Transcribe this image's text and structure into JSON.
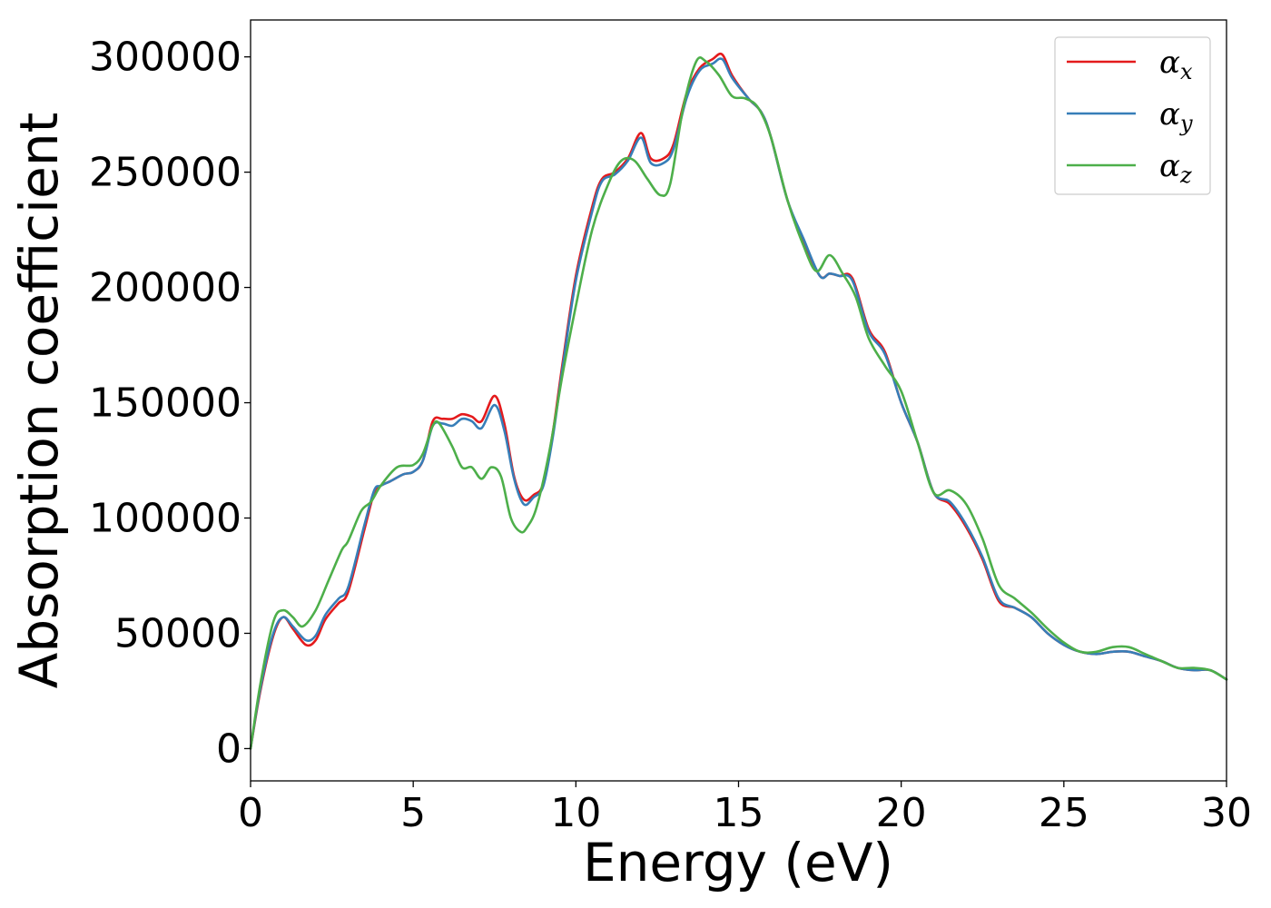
{
  "chart_data": {
    "type": "line",
    "title": "",
    "xlabel": "Energy (eV)",
    "ylabel": "Absorption coefficient",
    "xlim": [
      0,
      30
    ],
    "ylim": [
      -14000,
      316000
    ],
    "xticks": [
      0,
      5,
      10,
      15,
      20,
      25,
      30
    ],
    "yticks": [
      0,
      50000,
      100000,
      150000,
      200000,
      250000,
      300000
    ],
    "grid": false,
    "legend_position": "top-right",
    "series": [
      {
        "name": "αx",
        "base": "α",
        "sub": "x",
        "color": "#e41a1c",
        "x": [
          0,
          0.3,
          0.7,
          1.0,
          1.3,
          1.7,
          2.0,
          2.3,
          2.7,
          3.0,
          3.5,
          3.8,
          4.0,
          4.3,
          4.7,
          5.0,
          5.3,
          5.6,
          5.9,
          6.2,
          6.5,
          6.8,
          7.1,
          7.5,
          7.8,
          8.1,
          8.4,
          8.7,
          9.0,
          9.3,
          9.6,
          10.0,
          10.5,
          10.8,
          11.2,
          11.6,
          12.0,
          12.3,
          12.7,
          13.0,
          13.4,
          13.8,
          14.2,
          14.5,
          14.8,
          15.3,
          15.7,
          16.0,
          16.5,
          17.0,
          17.5,
          17.8,
          18.1,
          18.5,
          19.0,
          19.5,
          20.0,
          20.5,
          21.0,
          21.5,
          22.0,
          22.5,
          23.0,
          23.5,
          24.0,
          24.5,
          25.0,
          25.5,
          26.0,
          26.5,
          27.0,
          27.5,
          28.0,
          28.5,
          29.0,
          29.5,
          30.0
        ],
        "y": [
          0,
          25000,
          49000,
          57000,
          52000,
          45000,
          47000,
          56000,
          63000,
          68000,
          95000,
          111000,
          114000,
          116000,
          119000,
          120000,
          125000,
          142000,
          143000,
          143000,
          145000,
          144000,
          142000,
          153000,
          141000,
          118000,
          108000,
          110000,
          115000,
          138000,
          168000,
          205000,
          235000,
          247000,
          250000,
          256000,
          267000,
          256000,
          256000,
          262000,
          284000,
          295000,
          299000,
          301000,
          292000,
          282000,
          276000,
          265000,
          238000,
          220000,
          205000,
          206000,
          205000,
          204000,
          182000,
          172000,
          150000,
          133000,
          111000,
          106000,
          96000,
          82000,
          64000,
          61000,
          57000,
          50000,
          45000,
          42000,
          41000,
          42000,
          42000,
          40000,
          38000,
          35000,
          34000,
          34000,
          30000
        ]
      },
      {
        "name": "αy",
        "base": "α",
        "sub": "y",
        "color": "#377eb8",
        "x": [
          0,
          0.3,
          0.7,
          1.0,
          1.3,
          1.7,
          2.0,
          2.3,
          2.7,
          3.0,
          3.5,
          3.8,
          4.0,
          4.3,
          4.7,
          5.0,
          5.3,
          5.6,
          5.9,
          6.2,
          6.5,
          6.8,
          7.1,
          7.5,
          7.8,
          8.1,
          8.4,
          8.7,
          9.0,
          9.3,
          9.6,
          10.0,
          10.5,
          10.8,
          11.2,
          11.6,
          12.0,
          12.3,
          12.7,
          13.0,
          13.4,
          13.8,
          14.2,
          14.5,
          14.8,
          15.3,
          15.7,
          16.0,
          16.5,
          17.0,
          17.5,
          17.8,
          18.1,
          18.5,
          19.0,
          19.5,
          20.0,
          20.5,
          21.0,
          21.5,
          22.0,
          22.5,
          23.0,
          23.5,
          24.0,
          24.5,
          25.0,
          25.5,
          26.0,
          26.5,
          27.0,
          27.5,
          28.0,
          28.5,
          29.0,
          29.5,
          30.0
        ],
        "y": [
          0,
          26000,
          50000,
          57000,
          53000,
          47000,
          49000,
          58000,
          65000,
          70000,
          97000,
          112000,
          114000,
          116000,
          119000,
          120000,
          125000,
          140000,
          141000,
          140000,
          143000,
          142000,
          139000,
          149000,
          138000,
          117000,
          106000,
          109000,
          114000,
          136000,
          166000,
          203000,
          233000,
          246000,
          249000,
          255000,
          265000,
          254000,
          254000,
          260000,
          282000,
          294000,
          297000,
          299000,
          291000,
          282000,
          276000,
          265000,
          238000,
          221000,
          205000,
          206000,
          205000,
          203000,
          181000,
          171000,
          150000,
          133000,
          111000,
          107000,
          97000,
          83000,
          65000,
          61000,
          57000,
          50000,
          45000,
          42000,
          41000,
          42000,
          42000,
          40000,
          38000,
          35000,
          34000,
          34000,
          30000
        ]
      },
      {
        "name": "αz",
        "base": "α",
        "sub": "z",
        "color": "#4daf4a",
        "x": [
          0,
          0.3,
          0.7,
          1.0,
          1.3,
          1.6,
          2.0,
          2.4,
          2.8,
          3.0,
          3.4,
          3.7,
          4.0,
          4.5,
          5.0,
          5.3,
          5.6,
          5.8,
          6.2,
          6.5,
          6.8,
          7.1,
          7.4,
          7.7,
          8.0,
          8.3,
          8.5,
          8.8,
          9.2,
          9.6,
          10.0,
          10.5,
          11.0,
          11.4,
          11.8,
          12.2,
          12.6,
          12.9,
          13.3,
          13.7,
          14.0,
          14.4,
          14.8,
          15.2,
          15.6,
          16.0,
          16.5,
          17.0,
          17.4,
          17.8,
          18.2,
          18.6,
          19.0,
          19.5,
          20.0,
          20.5,
          21.0,
          21.5,
          22.0,
          22.5,
          23.0,
          23.5,
          24.0,
          24.5,
          25.0,
          25.5,
          26.0,
          26.5,
          27.0,
          27.5,
          28.0,
          28.5,
          29.0,
          29.5,
          30.0
        ],
        "y": [
          0,
          28000,
          55000,
          60000,
          57000,
          53000,
          60000,
          73000,
          86000,
          90000,
          103000,
          107000,
          114000,
          122000,
          123000,
          128000,
          140000,
          141000,
          131000,
          122000,
          122000,
          117000,
          122000,
          118000,
          100000,
          94000,
          96000,
          105000,
          130000,
          163000,
          192000,
          225000,
          245000,
          255000,
          255000,
          247000,
          240000,
          245000,
          278000,
          298000,
          298000,
          292000,
          283000,
          282000,
          278000,
          265000,
          238000,
          218000,
          207000,
          214000,
          206000,
          196000,
          178000,
          166000,
          155000,
          133000,
          111000,
          112000,
          106000,
          91000,
          71000,
          65000,
          59000,
          52000,
          46000,
          42000,
          42000,
          44000,
          44000,
          41000,
          38000,
          35000,
          35000,
          34000,
          30000
        ]
      }
    ]
  }
}
